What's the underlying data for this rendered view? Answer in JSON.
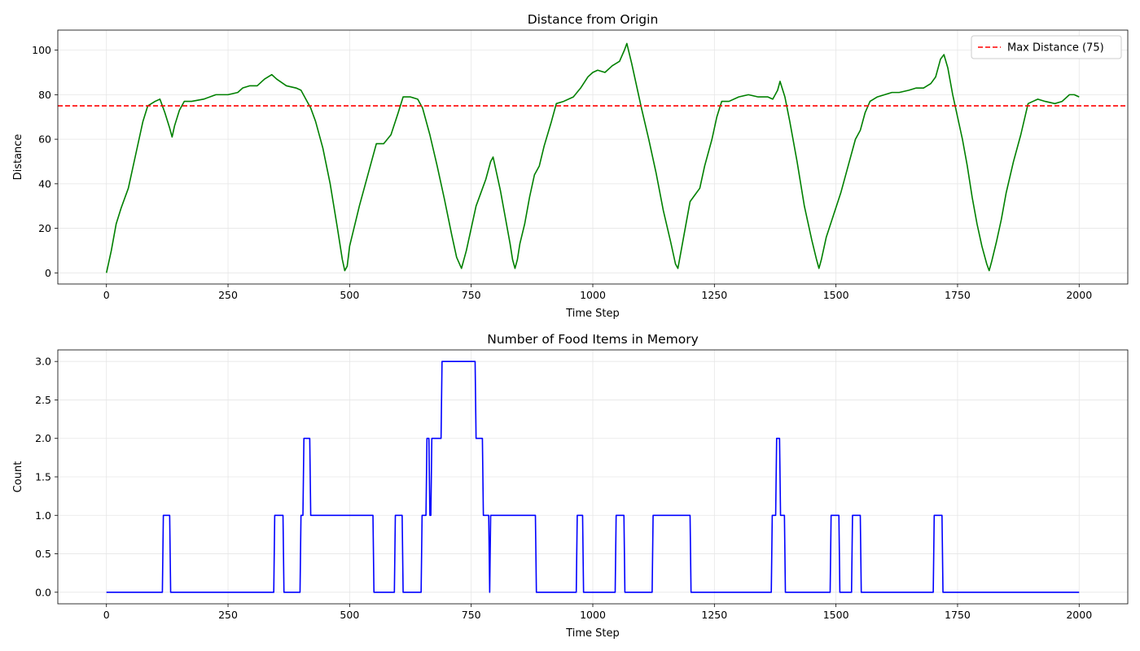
{
  "chart_data": [
    {
      "type": "line",
      "title": "Distance from Origin",
      "xlabel": "Time Step",
      "ylabel": "Distance",
      "xlim": [
        -100,
        2100
      ],
      "ylim": [
        -5,
        109
      ],
      "xticks": [
        0,
        250,
        500,
        750,
        1000,
        1250,
        1500,
        1750,
        2000
      ],
      "yticks": [
        0,
        20,
        40,
        60,
        80,
        100
      ],
      "grid": true,
      "legend_position": "top-right",
      "series": [
        {
          "name": "",
          "color": "#008000",
          "points": [
            [
              0,
              0
            ],
            [
              10,
              10
            ],
            [
              20,
              22
            ],
            [
              30,
              29
            ],
            [
              45,
              38
            ],
            [
              60,
              53
            ],
            [
              75,
              68
            ],
            [
              85,
              75
            ],
            [
              100,
              77
            ],
            [
              110,
              78
            ],
            [
              120,
              72
            ],
            [
              130,
              65
            ],
            [
              135,
              61
            ],
            [
              140,
              66
            ],
            [
              150,
              73
            ],
            [
              160,
              77
            ],
            [
              175,
              77
            ],
            [
              200,
              78
            ],
            [
              225,
              80
            ],
            [
              250,
              80
            ],
            [
              270,
              81
            ],
            [
              280,
              83
            ],
            [
              295,
              84
            ],
            [
              310,
              84
            ],
            [
              325,
              87
            ],
            [
              340,
              89
            ],
            [
              350,
              87
            ],
            [
              370,
              84
            ],
            [
              390,
              83
            ],
            [
              400,
              82
            ],
            [
              410,
              78
            ],
            [
              420,
              74
            ],
            [
              430,
              68
            ],
            [
              445,
              56
            ],
            [
              460,
              40
            ],
            [
              475,
              20
            ],
            [
              485,
              6
            ],
            [
              490,
              1
            ],
            [
              495,
              3
            ],
            [
              500,
              12
            ],
            [
              510,
              21
            ],
            [
              520,
              30
            ],
            [
              530,
              38
            ],
            [
              545,
              50
            ],
            [
              555,
              58
            ],
            [
              570,
              58
            ],
            [
              585,
              62
            ],
            [
              600,
              72
            ],
            [
              610,
              79
            ],
            [
              625,
              79
            ],
            [
              640,
              78
            ],
            [
              650,
              74
            ],
            [
              665,
              62
            ],
            [
              680,
              48
            ],
            [
              695,
              33
            ],
            [
              710,
              17
            ],
            [
              720,
              7
            ],
            [
              730,
              2
            ],
            [
              740,
              10
            ],
            [
              750,
              20
            ],
            [
              760,
              30
            ],
            [
              770,
              36
            ],
            [
              780,
              42
            ],
            [
              790,
              50
            ],
            [
              795,
              52
            ],
            [
              800,
              47
            ],
            [
              810,
              37
            ],
            [
              820,
              25
            ],
            [
              830,
              13
            ],
            [
              835,
              6
            ],
            [
              840,
              2
            ],
            [
              845,
              6
            ],
            [
              850,
              13
            ],
            [
              860,
              22
            ],
            [
              870,
              34
            ],
            [
              880,
              44
            ],
            [
              890,
              48
            ],
            [
              900,
              57
            ],
            [
              915,
              68
            ],
            [
              925,
              76
            ],
            [
              940,
              77
            ],
            [
              960,
              79
            ],
            [
              975,
              83
            ],
            [
              990,
              88
            ],
            [
              1000,
              90
            ],
            [
              1010,
              91
            ],
            [
              1025,
              90
            ],
            [
              1040,
              93
            ],
            [
              1055,
              95
            ],
            [
              1065,
              100
            ],
            [
              1070,
              103
            ],
            [
              1080,
              94
            ],
            [
              1090,
              84
            ],
            [
              1100,
              74
            ],
            [
              1115,
              60
            ],
            [
              1130,
              45
            ],
            [
              1145,
              28
            ],
            [
              1160,
              14
            ],
            [
              1170,
              4
            ],
            [
              1175,
              2
            ],
            [
              1180,
              8
            ],
            [
              1190,
              20
            ],
            [
              1200,
              32
            ],
            [
              1210,
              35
            ],
            [
              1220,
              38
            ],
            [
              1230,
              48
            ],
            [
              1245,
              60
            ],
            [
              1255,
              70
            ],
            [
              1265,
              77
            ],
            [
              1280,
              77
            ],
            [
              1300,
              79
            ],
            [
              1320,
              80
            ],
            [
              1340,
              79
            ],
            [
              1360,
              79
            ],
            [
              1370,
              78
            ],
            [
              1380,
              82
            ],
            [
              1385,
              86
            ],
            [
              1395,
              79
            ],
            [
              1405,
              68
            ],
            [
              1420,
              50
            ],
            [
              1435,
              30
            ],
            [
              1450,
              15
            ],
            [
              1460,
              6
            ],
            [
              1465,
              2
            ],
            [
              1470,
              6
            ],
            [
              1480,
              16
            ],
            [
              1495,
              26
            ],
            [
              1510,
              36
            ],
            [
              1525,
              48
            ],
            [
              1540,
              60
            ],
            [
              1550,
              64
            ],
            [
              1560,
              72
            ],
            [
              1570,
              77
            ],
            [
              1585,
              79
            ],
            [
              1600,
              80
            ],
            [
              1615,
              81
            ],
            [
              1630,
              81
            ],
            [
              1650,
              82
            ],
            [
              1665,
              83
            ],
            [
              1680,
              83
            ],
            [
              1695,
              85
            ],
            [
              1705,
              88
            ],
            [
              1715,
              96
            ],
            [
              1722,
              98
            ],
            [
              1730,
              92
            ],
            [
              1740,
              80
            ],
            [
              1750,
              70
            ],
            [
              1760,
              60
            ],
            [
              1770,
              48
            ],
            [
              1780,
              34
            ],
            [
              1790,
              22
            ],
            [
              1800,
              12
            ],
            [
              1810,
              4
            ],
            [
              1815,
              1
            ],
            [
              1820,
              5
            ],
            [
              1830,
              14
            ],
            [
              1840,
              24
            ],
            [
              1850,
              36
            ],
            [
              1865,
              50
            ],
            [
              1880,
              62
            ],
            [
              1895,
              76
            ],
            [
              1905,
              77
            ],
            [
              1915,
              78
            ],
            [
              1930,
              77
            ],
            [
              1950,
              76
            ],
            [
              1965,
              77
            ],
            [
              1980,
              80
            ],
            [
              1990,
              80
            ],
            [
              2000,
              79
            ]
          ]
        },
        {
          "name": "Max Distance (75)",
          "color": "#ff0000",
          "dashed": true,
          "hline": 75
        }
      ]
    },
    {
      "type": "line",
      "title": "Number of Food Items in Memory",
      "xlabel": "Time Step",
      "ylabel": "Count",
      "xlim": [
        -100,
        2100
      ],
      "ylim": [
        -0.15,
        3.15
      ],
      "xticks": [
        0,
        250,
        500,
        750,
        1000,
        1250,
        1500,
        1750,
        2000
      ],
      "yticks": [
        0.0,
        0.5,
        1.0,
        1.5,
        2.0,
        2.5,
        3.0
      ],
      "grid": true,
      "step": true,
      "series": [
        {
          "name": "",
          "color": "#0000ff",
          "points": [
            [
              0,
              0
            ],
            [
              115,
              0
            ],
            [
              117,
              1
            ],
            [
              130,
              1
            ],
            [
              132,
              0
            ],
            [
              344,
              0
            ],
            [
              346,
              1
            ],
            [
              363,
              1
            ],
            [
              365,
              0
            ],
            [
              398,
              0
            ],
            [
              400,
              1
            ],
            [
              404,
              1
            ],
            [
              406,
              2
            ],
            [
              418,
              2
            ],
            [
              420,
              1
            ],
            [
              548,
              1
            ],
            [
              550,
              0
            ],
            [
              592,
              0
            ],
            [
              594,
              1
            ],
            [
              608,
              1
            ],
            [
              610,
              0
            ],
            [
              647,
              0
            ],
            [
              649,
              1
            ],
            [
              657,
              1
            ],
            [
              659,
              2
            ],
            [
              663,
              2
            ],
            [
              665,
              1
            ],
            [
              667,
              1
            ],
            [
              669,
              2
            ],
            [
              688,
              2
            ],
            [
              690,
              3
            ],
            [
              758,
              3
            ],
            [
              760,
              2
            ],
            [
              773,
              2
            ],
            [
              775,
              1
            ],
            [
              786,
              1
            ],
            [
              788,
              0
            ],
            [
              790,
              1
            ],
            [
              882,
              1
            ],
            [
              884,
              0
            ],
            [
              966,
              0
            ],
            [
              968,
              1
            ],
            [
              979,
              1
            ],
            [
              981,
              0
            ],
            [
              1046,
              0
            ],
            [
              1048,
              1
            ],
            [
              1064,
              1
            ],
            [
              1066,
              0
            ],
            [
              1122,
              0
            ],
            [
              1124,
              1
            ],
            [
              1200,
              1
            ],
            [
              1202,
              0
            ],
            [
              1367,
              0
            ],
            [
              1369,
              1
            ],
            [
              1376,
              1
            ],
            [
              1378,
              2
            ],
            [
              1384,
              2
            ],
            [
              1386,
              1
            ],
            [
              1394,
              1
            ],
            [
              1396,
              0
            ],
            [
              1488,
              0
            ],
            [
              1490,
              1
            ],
            [
              1506,
              1
            ],
            [
              1508,
              0
            ],
            [
              1532,
              0
            ],
            [
              1534,
              1
            ],
            [
              1550,
              1
            ],
            [
              1552,
              0
            ],
            [
              1700,
              0
            ],
            [
              1702,
              1
            ],
            [
              1718,
              1
            ],
            [
              1720,
              0
            ],
            [
              2000,
              0
            ]
          ]
        }
      ]
    }
  ]
}
